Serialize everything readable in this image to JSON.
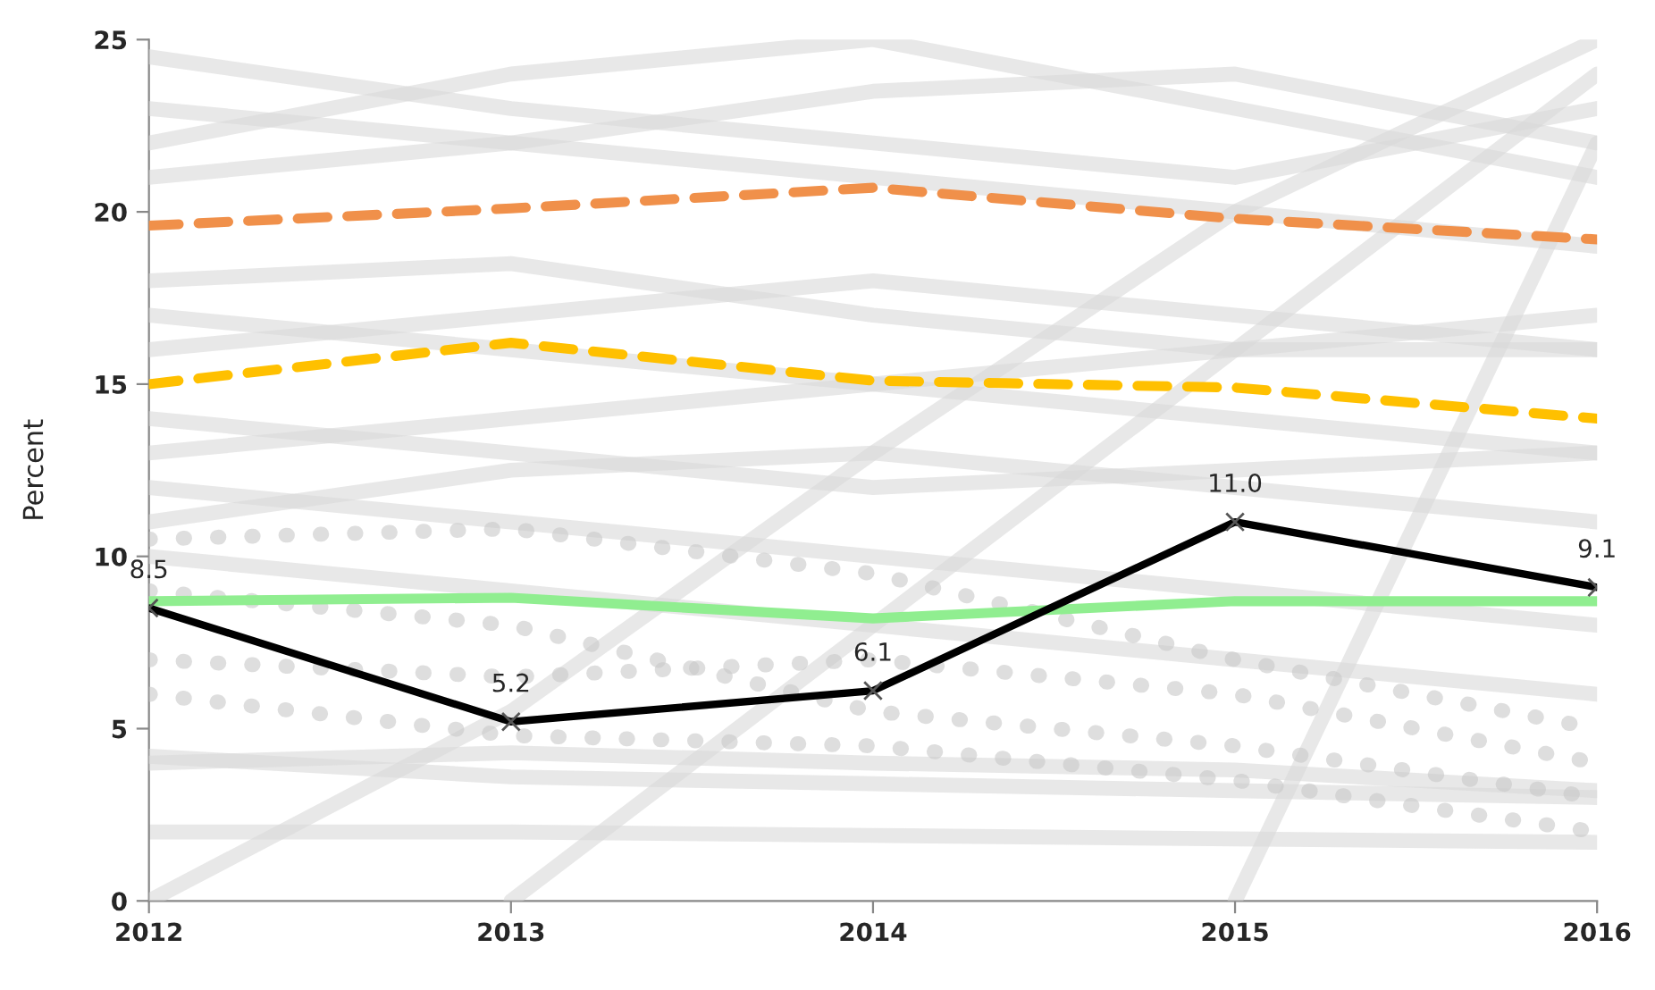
{
  "chart_data": {
    "type": "line",
    "ylabel": "Percent",
    "categories": [
      "2012",
      "2013",
      "2014",
      "2015",
      "2016"
    ],
    "ylim": [
      0,
      25
    ],
    "yticks": [
      0,
      5,
      10,
      15,
      20,
      25
    ],
    "grid": false,
    "legend": false,
    "series": [
      {
        "color": "#d9d9d9",
        "values": [
          2.0,
          2.0,
          1.9,
          1.8,
          1.7
        ]
      },
      {
        "color": "#d9d9d9",
        "values": [
          4.2,
          3.6,
          3.4,
          3.2,
          3.0
        ]
      },
      {
        "color": "#d9d9d9",
        "values": [
          4.0,
          4.3,
          4.0,
          3.8,
          3.2
        ]
      },
      {
        "color": "#d9d9d9",
        "values": [
          0,
          5.5,
          13,
          20,
          25
        ]
      },
      {
        "color": "#d9d9d9",
        "values": [
          null,
          0,
          8,
          16,
          24
        ]
      },
      {
        "color": "#d9d9d9",
        "values": [
          null,
          null,
          null,
          0,
          22
        ]
      },
      {
        "color": "#d9d9d9",
        "values": [
          12,
          11,
          10,
          9,
          8
        ]
      },
      {
        "color": "#d9d9d9",
        "values": [
          14,
          13,
          12,
          12.5,
          13
        ]
      },
      {
        "color": "#d9d9d9",
        "values": [
          17,
          16,
          15,
          14,
          13
        ]
      },
      {
        "color": "#d9d9d9",
        "values": [
          18,
          18.5,
          17,
          16,
          16
        ]
      },
      {
        "color": "#d9d9d9",
        "values": [
          21,
          22,
          21,
          20,
          19
        ]
      },
      {
        "color": "#d9d9d9",
        "values": [
          23,
          22,
          23.5,
          24,
          22
        ]
      },
      {
        "color": "#d9d9d9",
        "values": [
          24.5,
          23,
          22,
          21,
          23
        ]
      },
      {
        "color": "#d9d9d9",
        "values": [
          22,
          24,
          25,
          23,
          21
        ]
      },
      {
        "color": "#d9d9d9",
        "values": [
          16,
          17,
          18,
          17,
          16
        ]
      },
      {
        "color": "#d9d9d9",
        "values": [
          13,
          14,
          15,
          16,
          17
        ]
      },
      {
        "color": "#d9d9d9",
        "values": [
          11,
          12.5,
          13,
          12,
          11
        ]
      },
      {
        "color": "#d9d9d9",
        "values": [
          10,
          9,
          8,
          7,
          6
        ]
      },
      {
        "color": "#c8c8c8",
        "line_style": "dotted",
        "values": [
          10.5,
          10.8,
          9.5,
          7,
          5
        ]
      },
      {
        "color": "#c8c8c8",
        "line_style": "dotted",
        "values": [
          7,
          6.5,
          7,
          6,
          4
        ]
      },
      {
        "color": "#c8c8c8",
        "line_style": "dotted",
        "values": [
          9,
          8,
          5.5,
          4.5,
          3
        ]
      },
      {
        "color": "#c8c8c8",
        "line_style": "dotted",
        "values": [
          6,
          4.8,
          4.5,
          3.5,
          2
        ]
      },
      {
        "color": "#f0904a",
        "line_style": "dashed",
        "values": [
          19.6,
          20.1,
          20.7,
          19.8,
          19.2
        ]
      },
      {
        "color": "#ffc000",
        "line_style": "dashed",
        "values": [
          15.0,
          16.2,
          15.1,
          14.9,
          14.0
        ]
      },
      {
        "color": "#90ee90",
        "values": [
          8.7,
          8.8,
          8.2,
          8.7,
          8.7
        ]
      },
      {
        "color": "#000000",
        "marker": "cross",
        "values": [
          8.5,
          5.2,
          6.1,
          11.0,
          9.1
        ],
        "value_labels": [
          "8.5",
          "5.2",
          "6.1",
          "11.0",
          "9.1"
        ]
      }
    ]
  }
}
